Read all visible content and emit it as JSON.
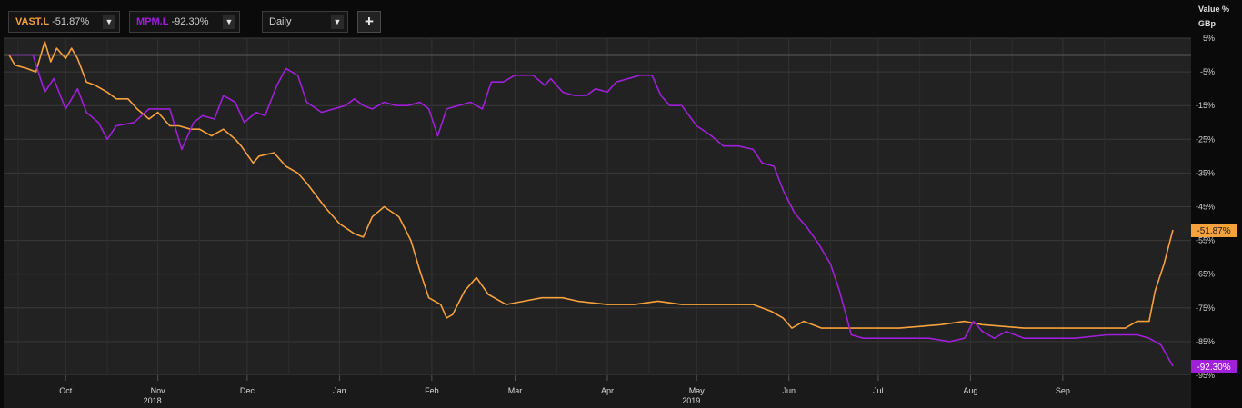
{
  "toolbar": {
    "series1": {
      "ticker": "VAST.L",
      "change": "-51.87%",
      "color": "#f7a13c"
    },
    "series2": {
      "ticker": "MPM.L",
      "change": "-92.30%",
      "color": "#a01fd8"
    },
    "interval": "Daily",
    "add_symbol": "+",
    "dropdown_icon": "triangle-down"
  },
  "axis_units": [
    "Value %",
    "GBp"
  ],
  "chart_data": {
    "type": "line",
    "y_unit": "%",
    "ylim": [
      -95,
      5
    ],
    "y_ticks": [
      "5%",
      "-5%",
      "-15%",
      "-25%",
      "-35%",
      "-45%",
      "-55%",
      "-65%",
      "-75%",
      "-85%",
      "-95%"
    ],
    "x_ticks": [
      "Oct",
      "Nov",
      "Dec",
      "Jan",
      "Feb",
      "Mar",
      "Apr",
      "May",
      "Jun",
      "Jul",
      "Aug",
      "Sep"
    ],
    "year_labels": [
      "2018",
      "2019"
    ],
    "grid": true,
    "baseline": 0,
    "series": [
      {
        "name": "VAST.L",
        "color": "#f7a13c",
        "last_label": "-51.87%",
        "points": [
          [
            "2018-09-12",
            0
          ],
          [
            "2018-09-14",
            -3
          ],
          [
            "2018-09-18",
            -4
          ],
          [
            "2018-09-21",
            -5
          ],
          [
            "2018-09-24",
            4
          ],
          [
            "2018-09-26",
            -2
          ],
          [
            "2018-09-28",
            2
          ],
          [
            "2018-10-01",
            -1
          ],
          [
            "2018-10-03",
            2
          ],
          [
            "2018-10-05",
            -1
          ],
          [
            "2018-10-08",
            -8
          ],
          [
            "2018-10-11",
            -9
          ],
          [
            "2018-10-15",
            -11
          ],
          [
            "2018-10-18",
            -13
          ],
          [
            "2018-10-22",
            -13
          ],
          [
            "2018-10-25",
            -16
          ],
          [
            "2018-10-29",
            -19
          ],
          [
            "2018-11-01",
            -17
          ],
          [
            "2018-11-05",
            -21
          ],
          [
            "2018-11-08",
            -21
          ],
          [
            "2018-11-12",
            -22
          ],
          [
            "2018-11-15",
            -22
          ],
          [
            "2018-11-19",
            -24
          ],
          [
            "2018-11-23",
            -22
          ],
          [
            "2018-11-27",
            -25
          ],
          [
            "2018-11-29",
            -27
          ],
          [
            "2018-12-03",
            -32
          ],
          [
            "2018-12-05",
            -30
          ],
          [
            "2018-12-10",
            -29
          ],
          [
            "2018-12-14",
            -33
          ],
          [
            "2018-12-18",
            -35
          ],
          [
            "2018-12-21",
            -38
          ],
          [
            "2018-12-27",
            -45
          ],
          [
            "2019-01-01",
            -50
          ],
          [
            "2019-01-06",
            -53
          ],
          [
            "2019-01-09",
            -54
          ],
          [
            "2019-01-12",
            -48
          ],
          [
            "2019-01-16",
            -45
          ],
          [
            "2019-01-21",
            -48
          ],
          [
            "2019-01-25",
            -55
          ],
          [
            "2019-01-28",
            -64
          ],
          [
            "2019-01-31",
            -72
          ],
          [
            "2019-02-04",
            -74
          ],
          [
            "2019-02-06",
            -78
          ],
          [
            "2019-02-08",
            -77
          ],
          [
            "2019-02-12",
            -70
          ],
          [
            "2019-02-16",
            -66
          ],
          [
            "2019-02-20",
            -71
          ],
          [
            "2019-02-26",
            -74
          ],
          [
            "2019-03-04",
            -73
          ],
          [
            "2019-03-10",
            -72
          ],
          [
            "2019-03-17",
            -72
          ],
          [
            "2019-03-22",
            -73
          ],
          [
            "2019-04-01",
            -74
          ],
          [
            "2019-04-10",
            -74
          ],
          [
            "2019-04-18",
            -73
          ],
          [
            "2019-04-26",
            -74
          ],
          [
            "2019-05-06",
            -74
          ],
          [
            "2019-05-13",
            -74
          ],
          [
            "2019-05-20",
            -74
          ],
          [
            "2019-05-26",
            -76
          ],
          [
            "2019-05-30",
            -78
          ],
          [
            "2019-06-02",
            -81
          ],
          [
            "2019-06-06",
            -79
          ],
          [
            "2019-06-12",
            -81
          ],
          [
            "2019-06-24",
            -81
          ],
          [
            "2019-07-08",
            -81
          ],
          [
            "2019-07-22",
            -80
          ],
          [
            "2019-07-30",
            -79
          ],
          [
            "2019-08-05",
            -80
          ],
          [
            "2019-08-19",
            -81
          ],
          [
            "2019-08-26",
            -81
          ],
          [
            "2019-09-05",
            -81
          ],
          [
            "2019-09-16",
            -81
          ],
          [
            "2019-09-22",
            -81
          ],
          [
            "2019-09-26",
            -79
          ],
          [
            "2019-09-30",
            -79
          ],
          [
            "2019-10-02",
            -70
          ],
          [
            "2019-10-05",
            -62
          ],
          [
            "2019-10-08",
            -51.87
          ]
        ]
      },
      {
        "name": "MPM.L",
        "color": "#a01fd8",
        "last_label": "-92.30%",
        "points": [
          [
            "2018-09-12",
            0
          ],
          [
            "2018-09-20",
            0
          ],
          [
            "2018-09-24",
            -11
          ],
          [
            "2018-09-27",
            -7
          ],
          [
            "2018-10-01",
            -16
          ],
          [
            "2018-10-05",
            -10
          ],
          [
            "2018-10-08",
            -17
          ],
          [
            "2018-10-12",
            -20
          ],
          [
            "2018-10-15",
            -25
          ],
          [
            "2018-10-18",
            -21
          ],
          [
            "2018-10-24",
            -20
          ],
          [
            "2018-10-29",
            -16
          ],
          [
            "2018-11-05",
            -16
          ],
          [
            "2018-11-09",
            -28
          ],
          [
            "2018-11-13",
            -20
          ],
          [
            "2018-11-16",
            -18
          ],
          [
            "2018-11-20",
            -19
          ],
          [
            "2018-11-23",
            -12
          ],
          [
            "2018-11-27",
            -14
          ],
          [
            "2018-11-30",
            -20
          ],
          [
            "2018-12-04",
            -17
          ],
          [
            "2018-12-07",
            -18
          ],
          [
            "2018-12-11",
            -9
          ],
          [
            "2018-12-14",
            -4
          ],
          [
            "2018-12-18",
            -6
          ],
          [
            "2018-12-21",
            -14
          ],
          [
            "2018-12-26",
            -17
          ],
          [
            "2019-01-03",
            -15
          ],
          [
            "2019-01-06",
            -13
          ],
          [
            "2019-01-09",
            -15
          ],
          [
            "2019-01-12",
            -16
          ],
          [
            "2019-01-16",
            -14
          ],
          [
            "2019-01-20",
            -15
          ],
          [
            "2019-01-24",
            -15
          ],
          [
            "2019-01-28",
            -14
          ],
          [
            "2019-01-31",
            -16
          ],
          [
            "2019-02-03",
            -24
          ],
          [
            "2019-02-06",
            -16
          ],
          [
            "2019-02-10",
            -15
          ],
          [
            "2019-02-14",
            -14
          ],
          [
            "2019-02-18",
            -16
          ],
          [
            "2019-02-21",
            -8
          ],
          [
            "2019-02-25",
            -8
          ],
          [
            "2019-03-01",
            -6
          ],
          [
            "2019-03-07",
            -6
          ],
          [
            "2019-03-11",
            -9
          ],
          [
            "2019-03-13",
            -7
          ],
          [
            "2019-03-17",
            -11
          ],
          [
            "2019-03-21",
            -12
          ],
          [
            "2019-03-25",
            -12
          ],
          [
            "2019-03-28",
            -10
          ],
          [
            "2019-04-01",
            -11
          ],
          [
            "2019-04-04",
            -8
          ],
          [
            "2019-04-08",
            -7
          ],
          [
            "2019-04-12",
            -6
          ],
          [
            "2019-04-16",
            -6
          ],
          [
            "2019-04-19",
            -12
          ],
          [
            "2019-04-22",
            -15
          ],
          [
            "2019-04-26",
            -15
          ],
          [
            "2019-05-01",
            -21
          ],
          [
            "2019-05-06",
            -24
          ],
          [
            "2019-05-10",
            -27
          ],
          [
            "2019-05-15",
            -27
          ],
          [
            "2019-05-20",
            -28
          ],
          [
            "2019-05-23",
            -32
          ],
          [
            "2019-05-27",
            -33
          ],
          [
            "2019-05-30",
            -40
          ],
          [
            "2019-06-03",
            -47
          ],
          [
            "2019-06-07",
            -51
          ],
          [
            "2019-06-11",
            -56
          ],
          [
            "2019-06-15",
            -62
          ],
          [
            "2019-06-18",
            -70
          ],
          [
            "2019-06-22",
            -83
          ],
          [
            "2019-06-26",
            -84
          ],
          [
            "2019-07-04",
            -84
          ],
          [
            "2019-07-11",
            -84
          ],
          [
            "2019-07-18",
            -84
          ],
          [
            "2019-07-25",
            -85
          ],
          [
            "2019-07-30",
            -84
          ],
          [
            "2019-08-02",
            -79
          ],
          [
            "2019-08-05",
            -82
          ],
          [
            "2019-08-09",
            -84
          ],
          [
            "2019-08-13",
            -82
          ],
          [
            "2019-08-19",
            -84
          ],
          [
            "2019-08-27",
            -84
          ],
          [
            "2019-09-05",
            -84
          ],
          [
            "2019-09-16",
            -83
          ],
          [
            "2019-09-26",
            -83
          ],
          [
            "2019-09-30",
            -84
          ],
          [
            "2019-10-04",
            -86
          ],
          [
            "2019-10-08",
            -92.3
          ]
        ]
      }
    ]
  }
}
